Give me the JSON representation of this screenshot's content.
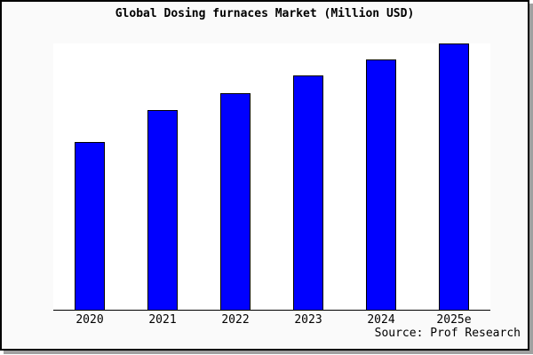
{
  "colors": {
    "background": "#fafafa",
    "plot_background": "#ffffff",
    "frame_border": "#000000",
    "shadow": "#a0a0a0",
    "axis": "#000000",
    "bar_fill": "#0000ff",
    "bar_border": "#000000",
    "text": "#000000"
  },
  "chart_data": {
    "type": "bar",
    "title": "Global Dosing furnaces Market (Million USD)",
    "categories": [
      "2020",
      "2021",
      "2022",
      "2023",
      "2024",
      "2025e"
    ],
    "values": [
      63,
      75,
      81.5,
      88,
      94,
      100
    ],
    "note": "No y-axis ticks or value labels are shown in the chart; values are relative bar heights estimated from pixels, normalized so 2025e = 100.",
    "xlabel": "",
    "ylabel": "",
    "ylim": [
      0,
      100
    ],
    "grid": false,
    "legend": false,
    "bar_color": "#0000ff",
    "source": "Source: Prof Research"
  }
}
